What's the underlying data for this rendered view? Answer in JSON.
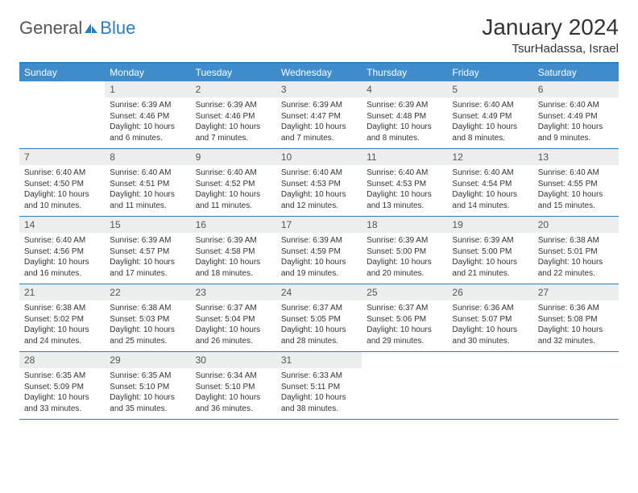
{
  "logo": {
    "text1": "General",
    "text2": "Blue"
  },
  "title": "January 2024",
  "location": "TsurHadassa, Israel",
  "colors": {
    "header_bg": "#3e8ccc",
    "border": "#2b7bbf",
    "daynum_bg": "#eceded",
    "text": "#333333",
    "logo_blue": "#2b7bbf"
  },
  "days_of_week": [
    "Sunday",
    "Monday",
    "Tuesday",
    "Wednesday",
    "Thursday",
    "Friday",
    "Saturday"
  ],
  "weeks": [
    [
      {
        "n": "",
        "sr": "",
        "ss": "",
        "dl": ""
      },
      {
        "n": "1",
        "sr": "6:39 AM",
        "ss": "4:46 PM",
        "dl": "10 hours and 6 minutes."
      },
      {
        "n": "2",
        "sr": "6:39 AM",
        "ss": "4:46 PM",
        "dl": "10 hours and 7 minutes."
      },
      {
        "n": "3",
        "sr": "6:39 AM",
        "ss": "4:47 PM",
        "dl": "10 hours and 7 minutes."
      },
      {
        "n": "4",
        "sr": "6:39 AM",
        "ss": "4:48 PM",
        "dl": "10 hours and 8 minutes."
      },
      {
        "n": "5",
        "sr": "6:40 AM",
        "ss": "4:49 PM",
        "dl": "10 hours and 8 minutes."
      },
      {
        "n": "6",
        "sr": "6:40 AM",
        "ss": "4:49 PM",
        "dl": "10 hours and 9 minutes."
      }
    ],
    [
      {
        "n": "7",
        "sr": "6:40 AM",
        "ss": "4:50 PM",
        "dl": "10 hours and 10 minutes."
      },
      {
        "n": "8",
        "sr": "6:40 AM",
        "ss": "4:51 PM",
        "dl": "10 hours and 11 minutes."
      },
      {
        "n": "9",
        "sr": "6:40 AM",
        "ss": "4:52 PM",
        "dl": "10 hours and 11 minutes."
      },
      {
        "n": "10",
        "sr": "6:40 AM",
        "ss": "4:53 PM",
        "dl": "10 hours and 12 minutes."
      },
      {
        "n": "11",
        "sr": "6:40 AM",
        "ss": "4:53 PM",
        "dl": "10 hours and 13 minutes."
      },
      {
        "n": "12",
        "sr": "6:40 AM",
        "ss": "4:54 PM",
        "dl": "10 hours and 14 minutes."
      },
      {
        "n": "13",
        "sr": "6:40 AM",
        "ss": "4:55 PM",
        "dl": "10 hours and 15 minutes."
      }
    ],
    [
      {
        "n": "14",
        "sr": "6:40 AM",
        "ss": "4:56 PM",
        "dl": "10 hours and 16 minutes."
      },
      {
        "n": "15",
        "sr": "6:39 AM",
        "ss": "4:57 PM",
        "dl": "10 hours and 17 minutes."
      },
      {
        "n": "16",
        "sr": "6:39 AM",
        "ss": "4:58 PM",
        "dl": "10 hours and 18 minutes."
      },
      {
        "n": "17",
        "sr": "6:39 AM",
        "ss": "4:59 PM",
        "dl": "10 hours and 19 minutes."
      },
      {
        "n": "18",
        "sr": "6:39 AM",
        "ss": "5:00 PM",
        "dl": "10 hours and 20 minutes."
      },
      {
        "n": "19",
        "sr": "6:39 AM",
        "ss": "5:00 PM",
        "dl": "10 hours and 21 minutes."
      },
      {
        "n": "20",
        "sr": "6:38 AM",
        "ss": "5:01 PM",
        "dl": "10 hours and 22 minutes."
      }
    ],
    [
      {
        "n": "21",
        "sr": "6:38 AM",
        "ss": "5:02 PM",
        "dl": "10 hours and 24 minutes."
      },
      {
        "n": "22",
        "sr": "6:38 AM",
        "ss": "5:03 PM",
        "dl": "10 hours and 25 minutes."
      },
      {
        "n": "23",
        "sr": "6:37 AM",
        "ss": "5:04 PM",
        "dl": "10 hours and 26 minutes."
      },
      {
        "n": "24",
        "sr": "6:37 AM",
        "ss": "5:05 PM",
        "dl": "10 hours and 28 minutes."
      },
      {
        "n": "25",
        "sr": "6:37 AM",
        "ss": "5:06 PM",
        "dl": "10 hours and 29 minutes."
      },
      {
        "n": "26",
        "sr": "6:36 AM",
        "ss": "5:07 PM",
        "dl": "10 hours and 30 minutes."
      },
      {
        "n": "27",
        "sr": "6:36 AM",
        "ss": "5:08 PM",
        "dl": "10 hours and 32 minutes."
      }
    ],
    [
      {
        "n": "28",
        "sr": "6:35 AM",
        "ss": "5:09 PM",
        "dl": "10 hours and 33 minutes."
      },
      {
        "n": "29",
        "sr": "6:35 AM",
        "ss": "5:10 PM",
        "dl": "10 hours and 35 minutes."
      },
      {
        "n": "30",
        "sr": "6:34 AM",
        "ss": "5:10 PM",
        "dl": "10 hours and 36 minutes."
      },
      {
        "n": "31",
        "sr": "6:33 AM",
        "ss": "5:11 PM",
        "dl": "10 hours and 38 minutes."
      },
      {
        "n": "",
        "sr": "",
        "ss": "",
        "dl": ""
      },
      {
        "n": "",
        "sr": "",
        "ss": "",
        "dl": ""
      },
      {
        "n": "",
        "sr": "",
        "ss": "",
        "dl": ""
      }
    ]
  ],
  "labels": {
    "sunrise": "Sunrise:",
    "sunset": "Sunset:",
    "daylight": "Daylight:"
  }
}
